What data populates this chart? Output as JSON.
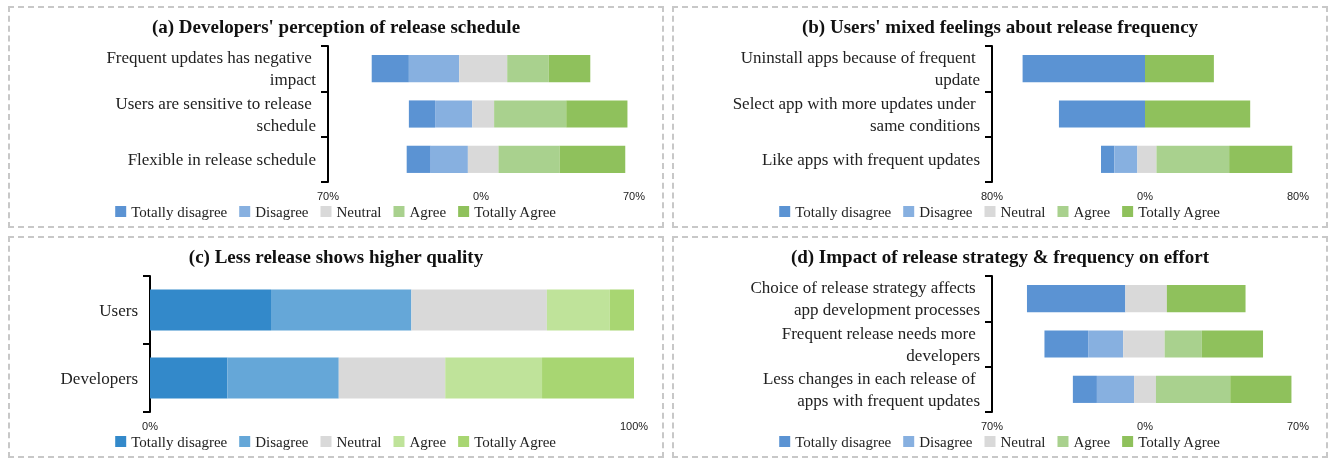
{
  "chart_data": [
    {
      "type": "bar",
      "title": "(a) Developers' perception of release schedule",
      "orientation": "horizontal",
      "legend": "bottom",
      "categories": [
        "Frequent updates has negative impact",
        "Users are sensitive to release schedule",
        "Flexible in release schedule"
      ],
      "xlim": [
        -70,
        70
      ],
      "xticks": [
        {
          "value": -70,
          "label": "70%"
        },
        {
          "value": 0,
          "label": "0%"
        },
        {
          "value": 70,
          "label": "70%"
        }
      ],
      "series": [
        {
          "name": "Totally disagree",
          "color": "#5b93d3",
          "base": [
            -50,
            -33,
            -34
          ],
          "values": [
            17,
            12,
            11
          ]
        },
        {
          "name": "Disagree",
          "color": "#87b0e0",
          "base": [
            -33,
            -21,
            -23
          ],
          "values": [
            23,
            17,
            17
          ]
        },
        {
          "name": "Neutral",
          "color": "#d9d9d9",
          "base": [
            -10,
            -4,
            -6
          ],
          "values": [
            22,
            10,
            14
          ]
        },
        {
          "name": "Agree",
          "color": "#a9d18e",
          "base": [
            12,
            6,
            8
          ],
          "values": [
            19,
            33,
            28
          ]
        },
        {
          "name": "Totally Agree",
          "color": "#8fc15c",
          "base": [
            31,
            39,
            36
          ],
          "values": [
            19,
            28,
            30
          ]
        }
      ]
    },
    {
      "type": "bar",
      "title": "(b) Users' mixed feelings about release frequency",
      "orientation": "horizontal",
      "legend": "bottom",
      "categories": [
        "Uninstall apps because of frequent update",
        "Select app with more updates under same conditions",
        "Like apps with frequent updates"
      ],
      "xlim": [
        -80,
        80
      ],
      "xticks": [
        {
          "value": -80,
          "label": "80%"
        },
        {
          "value": 0,
          "label": "0%"
        },
        {
          "value": 80,
          "label": "80%"
        }
      ],
      "series": [
        {
          "name": "Totally disagree",
          "color": "#5b93d3",
          "base": [
            -64,
            -45,
            -23
          ],
          "values": [
            64,
            45,
            7
          ]
        },
        {
          "name": "Disagree",
          "color": "#87b0e0",
          "base": [
            null,
            null,
            -16
          ],
          "values": [
            null,
            null,
            12
          ]
        },
        {
          "name": "Neutral",
          "color": "#d9d9d9",
          "base": [
            null,
            null,
            -4
          ],
          "values": [
            null,
            null,
            10
          ]
        },
        {
          "name": "Agree",
          "color": "#a9d18e",
          "base": [
            null,
            null,
            6
          ],
          "values": [
            null,
            null,
            38
          ]
        },
        {
          "name": "Totally Agree",
          "color": "#8fc15c",
          "base": [
            0,
            0,
            44
          ],
          "values": [
            36,
            55,
            33
          ]
        }
      ]
    },
    {
      "type": "bar",
      "title": "(c) Less release shows higher quality",
      "orientation": "horizontal",
      "stacked": true,
      "legend": "bottom",
      "categories": [
        "Users",
        "Developers"
      ],
      "xlim": [
        0,
        100
      ],
      "xticks": [
        {
          "value": 0,
          "label": "0%"
        },
        {
          "value": 100,
          "label": "100%"
        }
      ],
      "series": [
        {
          "name": "Totally disagree",
          "color": "#3389ca",
          "values": [
            25,
            16
          ]
        },
        {
          "name": "Disagree",
          "color": "#65a7d8",
          "values": [
            29,
            23
          ]
        },
        {
          "name": "Neutral",
          "color": "#d9d9d9",
          "values": [
            28,
            22
          ]
        },
        {
          "name": "Agree",
          "color": "#bfe39a",
          "values": [
            13,
            20
          ]
        },
        {
          "name": "Totally Agree",
          "color": "#a8d672",
          "values": [
            5,
            19
          ]
        }
      ]
    },
    {
      "type": "bar",
      "title": "(d) Impact of release strategy & frequency on effort",
      "orientation": "horizontal",
      "legend": "bottom",
      "categories": [
        "Choice of release strategy affects app development processes",
        "Frequent release needs more developers",
        "Less changes in each release of apps with frequent updates"
      ],
      "xlim": [
        -70,
        70
      ],
      "xticks": [
        {
          "value": -70,
          "label": "70%"
        },
        {
          "value": 0,
          "label": "0%"
        },
        {
          "value": 70,
          "label": "70%"
        }
      ],
      "series": [
        {
          "name": "Totally disagree",
          "color": "#5b93d3",
          "base": [
            -54,
            -46,
            -33
          ],
          "values": [
            45,
            20,
            11
          ]
        },
        {
          "name": "Disagree",
          "color": "#87b0e0",
          "base": [
            null,
            -26,
            -22
          ],
          "values": [
            null,
            16,
            17
          ]
        },
        {
          "name": "Neutral",
          "color": "#d9d9d9",
          "base": [
            -9,
            -10,
            -5
          ],
          "values": [
            19,
            19,
            10
          ]
        },
        {
          "name": "Agree",
          "color": "#a9d18e",
          "base": [
            null,
            9,
            5
          ],
          "values": [
            null,
            17,
            34
          ]
        },
        {
          "name": "Totally Agree",
          "color": "#8fc15c",
          "base": [
            10,
            26,
            39
          ],
          "values": [
            36,
            28,
            28
          ]
        }
      ]
    }
  ]
}
